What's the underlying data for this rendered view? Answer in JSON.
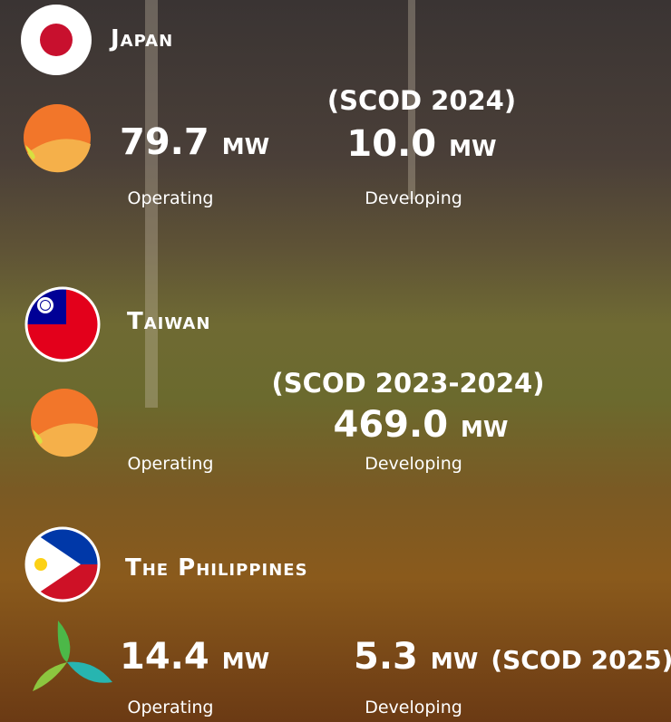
{
  "regions": [
    {
      "name": "Japan",
      "operating": {
        "value": "79.7",
        "unit": "MW",
        "label": "Operating"
      },
      "developing": {
        "scod": "(SCOD 2024)",
        "value": "10.0",
        "unit": "MW",
        "label": "Developing"
      }
    },
    {
      "name": "Taiwan",
      "operating": {
        "label": "Operating"
      },
      "developing": {
        "scod": "(SCOD 2023-2024)",
        "value": "469.0",
        "unit": "MW",
        "label": "Developing"
      }
    },
    {
      "name": "The Philippines",
      "operating": {
        "value": "14.4",
        "unit": "MW",
        "label": "Operating"
      },
      "developing": {
        "value": "5.3",
        "unit": "MW",
        "scod": "(SCOD 2025)",
        "label": "Developing"
      }
    }
  ]
}
